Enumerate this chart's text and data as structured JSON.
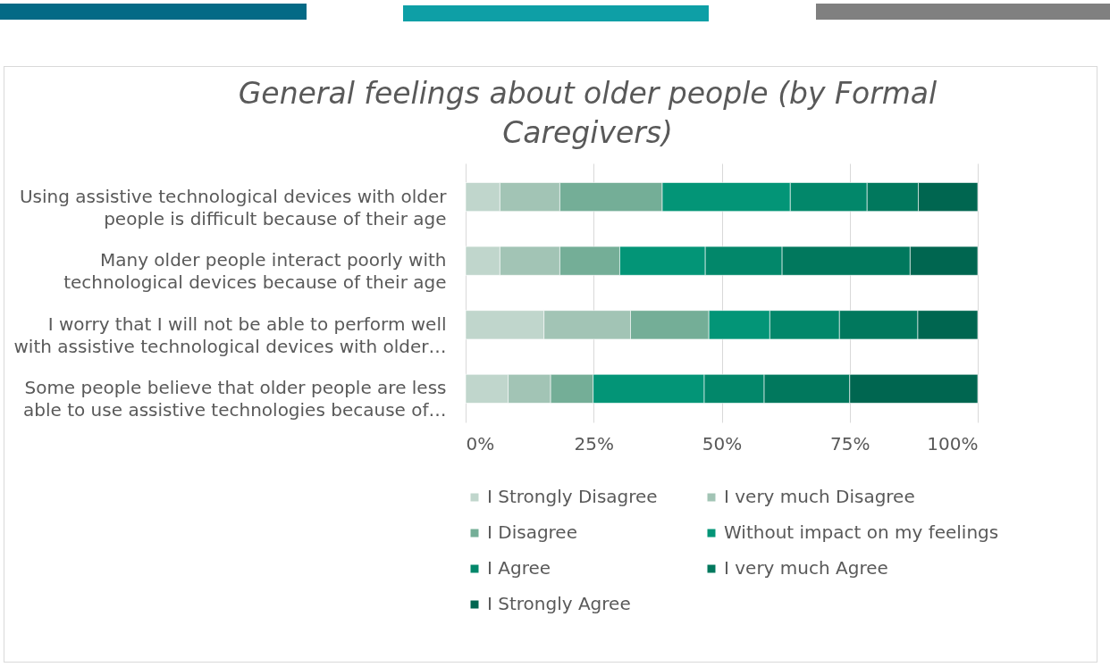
{
  "chart_data": {
    "type": "bar",
    "orientation": "horizontal",
    "stacked": true,
    "title": "General feelings about older people (by Formal Caregivers)",
    "categories": [
      "Using assistive technological devices with older people is difficult because of their age",
      "Many older people interact poorly with technological devices because of their age",
      "I worry that I will not be able to perform well with assistive technological devices with older…",
      "Some people believe that older people are less able to use assistive technologies because of…"
    ],
    "series": [
      {
        "name": "I Strongly Disagree",
        "color": "#c0d6cc",
        "values": [
          6.7,
          6.7,
          15.3,
          8.3
        ]
      },
      {
        "name": "I very much Disagree",
        "color": "#a2c4b5",
        "values": [
          11.7,
          11.7,
          16.9,
          8.3
        ]
      },
      {
        "name": "I Disagree",
        "color": "#74ae97",
        "values": [
          20,
          11.7,
          15.3,
          8.3
        ]
      },
      {
        "name": "Without impact on my feelings",
        "color": "#039577",
        "values": [
          25,
          16.7,
          11.9,
          21.7
        ]
      },
      {
        "name": "I Agree",
        "color": "#02876a",
        "values": [
          15,
          15,
          13.6,
          11.7
        ]
      },
      {
        "name": "I very much Agree",
        "color": "#01785d",
        "values": [
          10,
          25,
          15.3,
          16.7
        ]
      },
      {
        "name": "I Strongly Agree",
        "color": "#006650",
        "values": [
          11.6,
          13.2,
          11.7,
          25
        ]
      }
    ],
    "xlim": [
      0,
      100
    ],
    "xticks": [
      {
        "value": 0,
        "label": "0%"
      },
      {
        "value": 25,
        "label": "25%"
      },
      {
        "value": 50,
        "label": "50%"
      },
      {
        "value": 75,
        "label": "75%"
      },
      {
        "value": 100,
        "label": "100%"
      }
    ],
    "grid": "x",
    "legend": "bottom"
  }
}
